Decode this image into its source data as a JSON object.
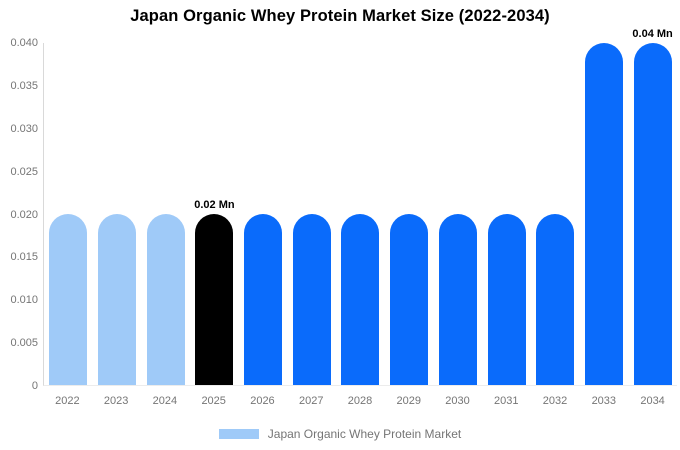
{
  "chart_data": {
    "type": "bar",
    "title": "Japan Organic Whey Protein Market Size (2022-2034)",
    "unit": "Mn",
    "categories": [
      "2022",
      "2023",
      "2024",
      "2025",
      "2026",
      "2027",
      "2028",
      "2029",
      "2030",
      "2031",
      "2032",
      "2033",
      "2034"
    ],
    "values": [
      0.02,
      0.02,
      0.02,
      0.02,
      0.02,
      0.02,
      0.02,
      0.02,
      0.02,
      0.02,
      0.02,
      0.04,
      0.04
    ],
    "bar_colors": [
      "#9FCAF8",
      "#9FCAF8",
      "#9FCAF8",
      "#000000",
      "#0A6BFB",
      "#0A6BFB",
      "#0A6BFB",
      "#0A6BFB",
      "#0A6BFB",
      "#0A6BFB",
      "#0A6BFB",
      "#0A6BFB",
      "#0A6BFB"
    ],
    "data_labels": {
      "2025": "0.02 Mn",
      "2034": "0.04 Mn"
    },
    "xlabel": "",
    "ylabel": "",
    "ylim": [
      0,
      0.04
    ],
    "ytick_labels": [
      "0.040",
      "0.035",
      "0.030",
      "0.025",
      "0.020",
      "0.015",
      "0.010",
      "0.005",
      "0"
    ],
    "grid": false,
    "legend": {
      "position": "bottom",
      "label": "Japan Organic Whey Protein Market",
      "swatch_color": "#9FCAF8"
    }
  },
  "colors": {
    "background": "#ffffff",
    "title_text": "#000000",
    "axis_text": "#757575",
    "axis_line": "#d9d9d9",
    "baseline": "#ececec",
    "data_label_text": "#000000"
  }
}
